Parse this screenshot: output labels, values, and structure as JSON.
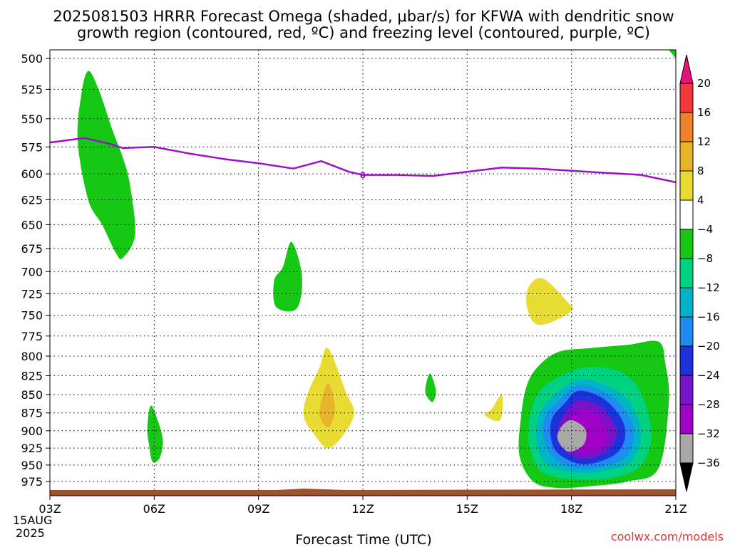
{
  "chart_data": {
    "type": "heatmap",
    "title_line1": "2025081503 HRRR Forecast Omega (shaded, μbar/s) for KFWA with dendritic snow",
    "title_line2": "growth region (contoured, red, ºC) and freezing level (contoured, purple, ºC)",
    "xlabel": "Forecast Time (UTC)",
    "x_ticks": [
      "03Z",
      "06Z",
      "09Z",
      "12Z",
      "15Z",
      "18Z",
      "21Z"
    ],
    "x_tick_hours": [
      3,
      6,
      9,
      12,
      15,
      18,
      21
    ],
    "x_date_label": [
      "15AUG",
      "2025"
    ],
    "xlim": [
      3,
      21
    ],
    "ylabel": "",
    "y_ticks": [
      500,
      525,
      550,
      575,
      600,
      625,
      650,
      675,
      700,
      725,
      750,
      775,
      800,
      825,
      850,
      875,
      900,
      925,
      950,
      975
    ],
    "ylim": [
      990,
      490
    ],
    "y_scale": "log-pressure",
    "grid": true,
    "colorbar": {
      "labels": [
        "20",
        "16",
        "12",
        "8",
        "4",
        "−4",
        "−8",
        "−12",
        "−16",
        "−20",
        "−24",
        "−28",
        "−32",
        "−36"
      ],
      "values": [
        20,
        16,
        12,
        8,
        4,
        -4,
        -8,
        -12,
        -16,
        -20,
        -24,
        -28,
        -32,
        -36
      ],
      "colors": [
        "#e8107a",
        "#f0383c",
        "#f08228",
        "#e8b428",
        "#e8dc32",
        "#ffffff",
        "#14c814",
        "#00d282",
        "#00b4c8",
        "#1e8cf0",
        "#1e32dc",
        "#7814c8",
        "#a000c8",
        "#a8a8a8",
        "#000000"
      ]
    },
    "freezing_level": {
      "color": "#9a12c8",
      "label": "0",
      "points": [
        [
          3.0,
          571
        ],
        [
          4.0,
          567
        ],
        [
          4.7,
          572
        ],
        [
          5.1,
          576
        ],
        [
          6.0,
          575
        ],
        [
          7.0,
          581
        ],
        [
          8.0,
          586
        ],
        [
          9.0,
          590
        ],
        [
          10.0,
          595
        ],
        [
          10.8,
          588
        ],
        [
          11.6,
          598
        ],
        [
          12.0,
          601
        ],
        [
          13.0,
          601
        ],
        [
          14.0,
          602
        ],
        [
          15.0,
          598
        ],
        [
          16.0,
          594
        ],
        [
          17.0,
          595
        ],
        [
          18.0,
          597
        ],
        [
          19.0,
          599
        ],
        [
          20.0,
          601
        ],
        [
          21.0,
          608
        ]
      ]
    },
    "omega_regions": [
      {
        "name": "upper-green",
        "level": -4,
        "color": "#14c814",
        "points": [
          [
            4.1,
            510
          ],
          [
            4.4,
            525
          ],
          [
            4.8,
            560
          ],
          [
            5.1,
            585
          ],
          [
            5.3,
            610
          ],
          [
            5.45,
            660
          ],
          [
            5.1,
            685
          ],
          [
            4.9,
            680
          ],
          [
            4.5,
            650
          ],
          [
            4.1,
            625
          ],
          [
            3.8,
            570
          ],
          [
            3.9,
            530
          ]
        ]
      },
      {
        "name": "left-green",
        "level": -4,
        "color": "#14c814",
        "points": [
          [
            5.9,
            865
          ],
          [
            6.1,
            885
          ],
          [
            6.25,
            915
          ],
          [
            6.15,
            940
          ],
          [
            5.95,
            945
          ],
          [
            5.85,
            920
          ],
          [
            5.8,
            895
          ]
        ]
      },
      {
        "name": "mid-green",
        "level": -4,
        "color": "#14c814",
        "points": [
          [
            9.95,
            668
          ],
          [
            10.25,
            705
          ],
          [
            10.1,
            742
          ],
          [
            9.5,
            740
          ],
          [
            9.45,
            710
          ],
          [
            9.7,
            695
          ]
        ]
      },
      {
        "name": "mid-yellow",
        "level": 4,
        "color": "#e8dc32",
        "points": [
          [
            11.0,
            790
          ],
          [
            11.5,
            845
          ],
          [
            11.75,
            875
          ],
          [
            11.45,
            905
          ],
          [
            11.0,
            925
          ],
          [
            10.6,
            905
          ],
          [
            10.3,
            880
          ],
          [
            10.4,
            850
          ],
          [
            10.75,
            815
          ]
        ]
      },
      {
        "name": "mid-orange",
        "level": 8,
        "color": "#e8b428",
        "points": [
          [
            11.0,
            835
          ],
          [
            11.2,
            870
          ],
          [
            11.0,
            895
          ],
          [
            10.75,
            875
          ]
        ]
      },
      {
        "name": "small-green",
        "level": -4,
        "color": "#14c814",
        "points": [
          [
            13.95,
            823
          ],
          [
            14.1,
            845
          ],
          [
            14.0,
            860
          ],
          [
            13.8,
            848
          ],
          [
            13.85,
            830
          ]
        ]
      },
      {
        "name": "small-yellow",
        "level": 4,
        "color": "#e8dc32",
        "points": [
          [
            16.0,
            850
          ],
          [
            15.95,
            885
          ],
          [
            15.5,
            878
          ],
          [
            15.7,
            870
          ]
        ]
      },
      {
        "name": "upper-yellow",
        "level": 4,
        "color": "#e8dc32",
        "points": [
          [
            17.2,
            708
          ],
          [
            17.9,
            735
          ],
          [
            18.0,
            745
          ],
          [
            17.3,
            760
          ],
          [
            16.9,
            758
          ],
          [
            16.7,
            735
          ],
          [
            16.8,
            715
          ]
        ]
      },
      {
        "name": "big-green",
        "level": -4,
        "color": "#14c814",
        "points": [
          [
            17.0,
            815
          ],
          [
            17.6,
            795
          ],
          [
            18.5,
            790
          ],
          [
            19.6,
            786
          ],
          [
            20.5,
            782
          ],
          [
            20.7,
            810
          ],
          [
            20.8,
            860
          ],
          [
            20.5,
            955
          ],
          [
            19.6,
            975
          ],
          [
            18.6,
            982
          ],
          [
            17.6,
            985
          ],
          [
            16.9,
            975
          ],
          [
            16.5,
            935
          ],
          [
            16.55,
            880
          ],
          [
            16.7,
            840
          ]
        ]
      },
      {
        "name": "big-teal",
        "level": -8,
        "color": "#00d282",
        "points": [
          [
            17.2,
            840
          ],
          [
            18.3,
            815
          ],
          [
            19.4,
            820
          ],
          [
            20.0,
            848
          ],
          [
            20.3,
            905
          ],
          [
            20.0,
            950
          ],
          [
            19.3,
            968
          ],
          [
            18.3,
            972
          ],
          [
            17.2,
            962
          ],
          [
            16.8,
            925
          ],
          [
            16.8,
            880
          ]
        ]
      },
      {
        "name": "big-cyan",
        "level": -12,
        "color": "#00b4c8",
        "points": [
          [
            17.4,
            855
          ],
          [
            18.2,
            830
          ],
          [
            19.1,
            840
          ],
          [
            19.7,
            862
          ],
          [
            20.0,
            905
          ],
          [
            19.7,
            945
          ],
          [
            19.0,
            958
          ],
          [
            18.2,
            962
          ],
          [
            17.3,
            950
          ],
          [
            17.0,
            915
          ],
          [
            17.05,
            880
          ]
        ]
      },
      {
        "name": "big-blue",
        "level": -16,
        "color": "#1e8cf0",
        "points": [
          [
            17.6,
            860
          ],
          [
            18.2,
            838
          ],
          [
            19.0,
            848
          ],
          [
            19.55,
            872
          ],
          [
            19.8,
            905
          ],
          [
            19.55,
            938
          ],
          [
            18.9,
            952
          ],
          [
            18.2,
            955
          ],
          [
            17.5,
            940
          ],
          [
            17.2,
            910
          ],
          [
            17.25,
            880
          ]
        ]
      },
      {
        "name": "big-darkblue",
        "level": -20,
        "color": "#1e32dc",
        "points": [
          [
            17.8,
            862
          ],
          [
            18.2,
            845
          ],
          [
            18.9,
            855
          ],
          [
            19.4,
            880
          ],
          [
            19.55,
            905
          ],
          [
            19.35,
            930
          ],
          [
            18.8,
            945
          ],
          [
            18.2,
            948
          ],
          [
            17.6,
            932
          ],
          [
            17.4,
            908
          ],
          [
            17.45,
            882
          ]
        ]
      },
      {
        "name": "big-purple",
        "level": -24,
        "color": "#7814c8",
        "points": [
          [
            17.9,
            870
          ],
          [
            18.2,
            858
          ],
          [
            18.8,
            865
          ],
          [
            19.2,
            888
          ],
          [
            19.3,
            905
          ],
          [
            19.1,
            925
          ],
          [
            18.7,
            938
          ],
          [
            18.2,
            940
          ],
          [
            17.75,
            925
          ],
          [
            17.6,
            905
          ],
          [
            17.7,
            885
          ]
        ]
      },
      {
        "name": "big-magenta",
        "level": -28,
        "color": "#a000c8",
        "points": [
          [
            18.0,
            878
          ],
          [
            18.4,
            870
          ],
          [
            18.8,
            880
          ],
          [
            19.05,
            905
          ],
          [
            18.85,
            925
          ],
          [
            18.3,
            932
          ],
          [
            17.9,
            920
          ],
          [
            17.8,
            900
          ]
        ]
      },
      {
        "name": "big-gray",
        "level": -32,
        "color": "#a8a8a8",
        "points": [
          [
            18.0,
            885
          ],
          [
            18.4,
            898
          ],
          [
            18.35,
            920
          ],
          [
            17.9,
            930
          ],
          [
            17.6,
            912
          ],
          [
            17.7,
            895
          ]
        ]
      }
    ],
    "ground": {
      "color": "#a0522d"
    }
  },
  "credit": "coolwx.com/models"
}
